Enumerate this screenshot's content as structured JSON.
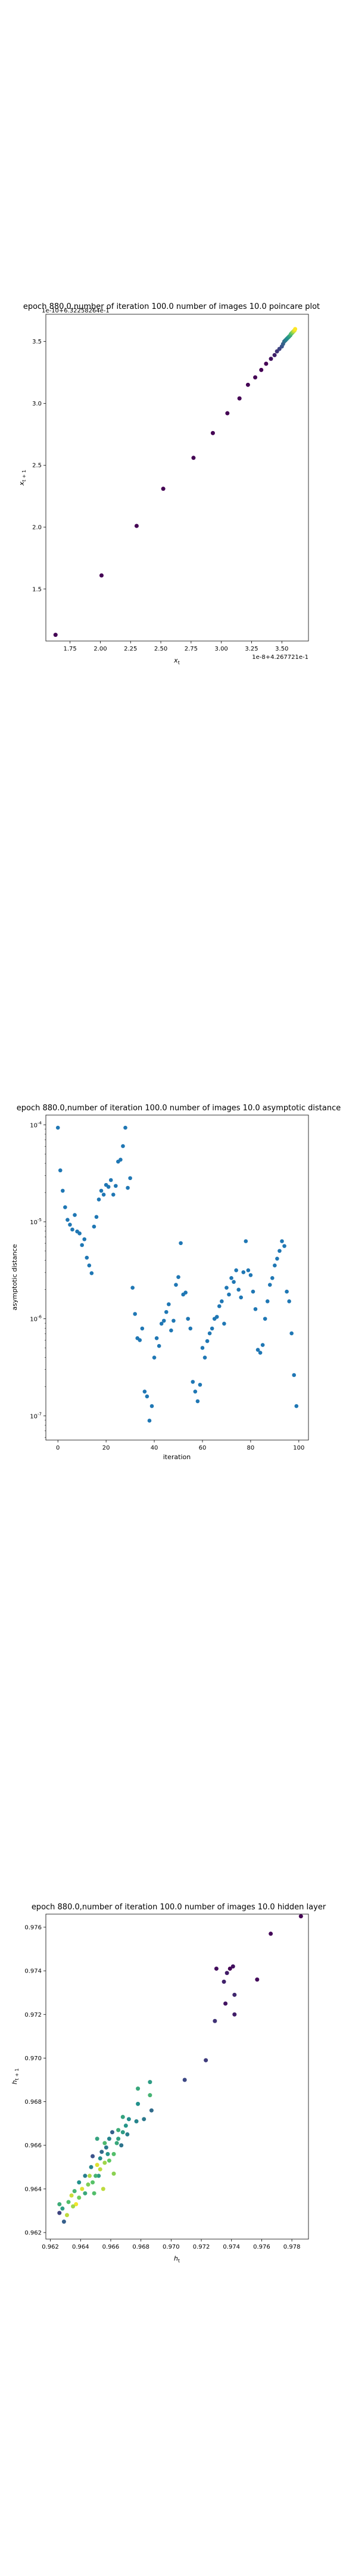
{
  "chart_data": [
    {
      "type": "scatter",
      "title": "epoch 880.0,number of iteration 100.0 number of images 10.0 poincare plot",
      "title_overlap": "1e-10+6.32258264e-1",
      "xlabel": "x_t",
      "ylabel": "x_{t+1}",
      "xlim": [
        1.55,
        3.72
      ],
      "ylim": [
        1.08,
        3.72
      ],
      "xticks": [
        "1.75",
        "2.00",
        "2.25",
        "2.50",
        "2.75",
        "3.00",
        "3.25",
        "3.50"
      ],
      "xtick_values": [
        1.75,
        2.0,
        2.25,
        2.5,
        2.75,
        3.0,
        3.25,
        3.5
      ],
      "yticks": [
        "1.5",
        "2.0",
        "2.5",
        "3.0",
        "3.5"
      ],
      "ytick_values": [
        1.5,
        2.0,
        2.5,
        3.0,
        3.5
      ],
      "x_offset_text": "1e-8+4.267721e-1",
      "colormap": "viridis",
      "points": [
        [
          1.63,
          1.13,
          0.0
        ],
        [
          2.01,
          1.61,
          0.0
        ],
        [
          2.3,
          2.01,
          0.0
        ],
        [
          2.52,
          2.31,
          0.0
        ],
        [
          2.77,
          2.56,
          0.0
        ],
        [
          2.93,
          2.76,
          0.0
        ],
        [
          3.05,
          2.92,
          0.0
        ],
        [
          3.15,
          3.04,
          0.0
        ],
        [
          3.22,
          3.15,
          0.0
        ],
        [
          3.28,
          3.21,
          0.0
        ],
        [
          3.33,
          3.27,
          0.0
        ],
        [
          3.37,
          3.32,
          0.0
        ],
        [
          3.41,
          3.36,
          0.05
        ],
        [
          3.44,
          3.39,
          0.1
        ],
        [
          3.46,
          3.42,
          0.15
        ],
        [
          3.48,
          3.44,
          0.2
        ],
        [
          3.5,
          3.46,
          0.25
        ],
        [
          3.51,
          3.48,
          0.3
        ],
        [
          3.52,
          3.5,
          0.35
        ],
        [
          3.53,
          3.51,
          0.4
        ],
        [
          3.54,
          3.52,
          0.45
        ],
        [
          3.55,
          3.53,
          0.5
        ],
        [
          3.56,
          3.54,
          0.55
        ],
        [
          3.57,
          3.55,
          0.6
        ],
        [
          3.575,
          3.56,
          0.65
        ],
        [
          3.58,
          3.565,
          0.7
        ],
        [
          3.585,
          3.57,
          0.75
        ],
        [
          3.59,
          3.575,
          0.8
        ],
        [
          3.595,
          3.58,
          0.85
        ],
        [
          3.6,
          3.585,
          0.9
        ],
        [
          3.605,
          3.59,
          0.95
        ],
        [
          3.61,
          3.6,
          1.0
        ]
      ]
    },
    {
      "type": "scatter",
      "title": "epoch 880.0,number of iteration 100.0  number of images 10.0 asymptotic distance",
      "xlabel": "iteration",
      "ylabel": "asymptotic distance",
      "xlim": [
        -5,
        104
      ],
      "ylog": true,
      "ylim_log10": [
        -7.25,
        -3.9
      ],
      "xticks": [
        "0",
        "20",
        "40",
        "60",
        "80",
        "100"
      ],
      "xtick_values": [
        0,
        20,
        40,
        60,
        80,
        100
      ],
      "yticks": [
        "10^{-4}",
        "10^{-5}",
        "10^{-6}",
        "10^{-7}"
      ],
      "ytick_exponents": [
        -4,
        -5,
        -6,
        -7
      ],
      "color": "#1f77b4",
      "iterations": [
        0,
        1,
        2,
        3,
        4,
        5,
        6,
        7,
        8,
        9,
        10,
        11,
        12,
        13,
        14,
        15,
        16,
        17,
        18,
        19,
        20,
        21,
        22,
        23,
        24,
        25,
        26,
        27,
        28,
        29,
        30,
        31,
        32,
        33,
        34,
        35,
        36,
        37,
        38,
        39,
        40,
        41,
        42,
        43,
        44,
        45,
        46,
        47,
        48,
        49,
        50,
        51,
        52,
        53,
        54,
        55,
        56,
        57,
        58,
        59,
        60,
        61,
        62,
        63,
        64,
        65,
        66,
        67,
        68,
        69,
        70,
        71,
        72,
        73,
        74,
        75,
        76,
        77,
        78,
        79,
        80,
        81,
        82,
        83,
        84,
        85,
        86,
        87,
        88,
        89,
        90,
        91,
        92,
        93,
        94,
        95,
        96,
        97,
        98,
        99
      ],
      "log10_values": [
        -4.03,
        -4.47,
        -4.68,
        -4.85,
        -4.98,
        -5.03,
        -5.08,
        -4.93,
        -5.1,
        -5.12,
        -5.24,
        -5.18,
        -5.37,
        -5.45,
        -5.53,
        -5.05,
        -4.95,
        -4.77,
        -4.68,
        -4.72,
        -4.62,
        -4.64,
        -4.57,
        -4.72,
        -4.63,
        -4.38,
        -4.36,
        -4.22,
        -4.03,
        -4.65,
        -4.55,
        -5.68,
        -5.95,
        -6.2,
        -6.22,
        -6.1,
        -6.75,
        -6.8,
        -7.05,
        -6.9,
        -6.4,
        -6.2,
        -6.28,
        -6.05,
        -6.02,
        -5.93,
        -5.85,
        -6.12,
        -6.02,
        -5.65,
        -5.57,
        -5.22,
        -5.75,
        -5.73,
        -6.0,
        -6.1,
        -6.65,
        -6.75,
        -6.85,
        -6.68,
        -6.3,
        -6.4,
        -6.23,
        -6.15,
        -6.1,
        -6.0,
        -5.98,
        -5.87,
        -5.82,
        -6.05,
        -5.68,
        -5.75,
        -5.58,
        -5.62,
        -5.5,
        -5.7,
        -5.78,
        -5.52,
        -5.2,
        -5.5,
        -5.55,
        -5.72,
        -5.9,
        -6.32,
        -6.35,
        -6.27,
        -6.0,
        -5.82,
        -5.65,
        -5.58,
        -5.45,
        -5.38,
        -5.3,
        -5.2,
        -5.25,
        -5.72,
        -5.82,
        -6.15,
        -6.58,
        -6.9
      ]
    },
    {
      "type": "scatter",
      "title": "epoch 880.0,number of iteration 100.0  number of images 10.0 hidden layer",
      "xlabel": "h_t",
      "ylabel": "h_{t+1}",
      "xlim": [
        0.9617,
        0.9791
      ],
      "ylim": [
        0.9617,
        0.9766
      ],
      "xticks": [
        "0.962",
        "0.964",
        "0.966",
        "0.968",
        "0.970",
        "0.972",
        "0.974",
        "0.976",
        "0.978"
      ],
      "xtick_values": [
        0.962,
        0.964,
        0.966,
        0.968,
        0.97,
        0.972,
        0.974,
        0.976,
        0.978
      ],
      "yticks": [
        "0.962",
        "0.964",
        "0.966",
        "0.968",
        "0.970",
        "0.972",
        "0.974",
        "0.976"
      ],
      "ytick_values": [
        0.962,
        0.964,
        0.966,
        0.968,
        0.97,
        0.972,
        0.974,
        0.976
      ],
      "colormap": "viridis",
      "points": [
        [
          0.9786,
          0.9765,
          0.0
        ],
        [
          0.9766,
          0.9757,
          0.02
        ],
        [
          0.9757,
          0.9736,
          0.03
        ],
        [
          0.9739,
          0.9741,
          0.0
        ],
        [
          0.9741,
          0.9742,
          0.05
        ],
        [
          0.9737,
          0.9739,
          0.08
        ],
        [
          0.973,
          0.9741,
          0.04
        ],
        [
          0.9735,
          0.9735,
          0.1
        ],
        [
          0.9742,
          0.9729,
          0.12
        ],
        [
          0.9736,
          0.9725,
          0.06
        ],
        [
          0.9742,
          0.972,
          0.09
        ],
        [
          0.9729,
          0.9717,
          0.15
        ],
        [
          0.9723,
          0.9699,
          0.18
        ],
        [
          0.9709,
          0.969,
          0.22
        ],
        [
          0.9687,
          0.9676,
          0.35
        ],
        [
          0.9682,
          0.9672,
          0.4
        ],
        [
          0.9686,
          0.9689,
          0.55
        ],
        [
          0.9686,
          0.9683,
          0.65
        ],
        [
          0.9678,
          0.9686,
          0.6
        ],
        [
          0.9678,
          0.9679,
          0.5
        ],
        [
          0.9677,
          0.9671,
          0.45
        ],
        [
          0.9672,
          0.9672,
          0.48
        ],
        [
          0.967,
          0.9669,
          0.52
        ],
        [
          0.9668,
          0.9673,
          0.58
        ],
        [
          0.9671,
          0.9665,
          0.42
        ],
        [
          0.9668,
          0.9666,
          0.55
        ],
        [
          0.9665,
          0.9667,
          0.62
        ],
        [
          0.9667,
          0.966,
          0.38
        ],
        [
          0.9665,
          0.9663,
          0.57
        ],
        [
          0.9664,
          0.9661,
          0.6
        ],
        [
          0.9662,
          0.9656,
          0.7
        ],
        [
          0.9659,
          0.9663,
          0.45
        ],
        [
          0.9661,
          0.9666,
          0.3
        ],
        [
          0.9657,
          0.9659,
          0.4
        ],
        [
          0.9658,
          0.9656,
          0.52
        ],
        [
          0.9659,
          0.9653,
          0.75
        ],
        [
          0.9656,
          0.9652,
          0.85
        ],
        [
          0.9654,
          0.9657,
          0.35
        ],
        [
          0.9653,
          0.9654,
          0.48
        ],
        [
          0.9653,
          0.9649,
          0.9
        ],
        [
          0.9651,
          0.9651,
          0.95
        ],
        [
          0.9652,
          0.9646,
          0.55
        ],
        [
          0.965,
          0.9646,
          0.65
        ],
        [
          0.9648,
          0.9655,
          0.25
        ],
        [
          0.9647,
          0.965,
          0.45
        ],
        [
          0.9646,
          0.9646,
          0.88
        ],
        [
          0.9648,
          0.9643,
          0.72
        ],
        [
          0.9645,
          0.9642,
          0.8
        ],
        [
          0.9643,
          0.9646,
          0.42
        ],
        [
          0.9643,
          0.9638,
          0.6
        ],
        [
          0.9641,
          0.964,
          0.95
        ],
        [
          0.9639,
          0.9643,
          0.5
        ],
        [
          0.9639,
          0.9636,
          0.78
        ],
        [
          0.9637,
          0.9633,
          0.98
        ],
        [
          0.9636,
          0.9639,
          0.66
        ],
        [
          0.9634,
          0.9637,
          0.92
        ],
        [
          0.9635,
          0.9632,
          0.85
        ],
        [
          0.9632,
          0.9634,
          0.7
        ],
        [
          0.9629,
          0.9625,
          0.3
        ],
        [
          0.9631,
          0.9628,
          0.9
        ],
        [
          0.9628,
          0.9631,
          0.55
        ],
        [
          0.9626,
          0.9629,
          0.2
        ],
        [
          0.9626,
          0.9633,
          0.62
        ],
        [
          0.9656,
          0.9661,
          0.68
        ],
        [
          0.9651,
          0.9663,
          0.58
        ],
        [
          0.9662,
          0.9647,
          0.82
        ],
        [
          0.9655,
          0.964,
          0.9
        ],
        [
          0.9649,
          0.9638,
          0.7
        ]
      ]
    }
  ]
}
